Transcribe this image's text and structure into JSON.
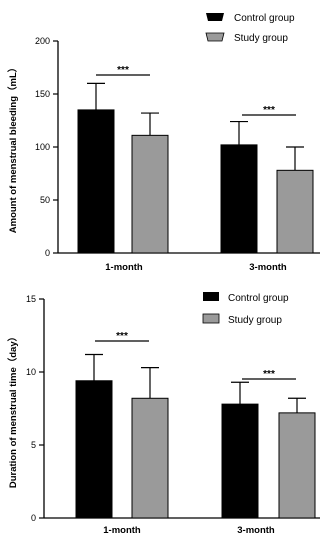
{
  "chart_data": [
    {
      "type": "bar",
      "categories": [
        "1-month",
        "3-month"
      ],
      "ylabel": "Amount of menstrual bleeding（mL）",
      "ylim": [
        0,
        200
      ],
      "yticks": [
        "0",
        "50",
        "100",
        "150",
        "200"
      ],
      "legend_position": "top-right",
      "series": [
        {
          "name": "Control group",
          "color": "#000000",
          "values": [
            135,
            102
          ],
          "errors": [
            25,
            22
          ]
        },
        {
          "name": "Study group",
          "color": "#9a9a9a",
          "values": [
            111,
            78
          ],
          "errors": [
            21,
            22
          ]
        }
      ],
      "annotations": [
        "***",
        "***"
      ]
    },
    {
      "type": "bar",
      "categories": [
        "1-month",
        "3-month"
      ],
      "ylabel": "Duration of menstrual time（day）",
      "ylim": [
        0,
        15
      ],
      "yticks": [
        "0",
        "5",
        "10",
        "15"
      ],
      "legend_position": "top-right",
      "series": [
        {
          "name": "Control group",
          "color": "#000000",
          "values": [
            9.4,
            7.8
          ],
          "errors": [
            1.8,
            1.5
          ]
        },
        {
          "name": "Study group",
          "color": "#9a9a9a",
          "values": [
            8.2,
            7.2
          ],
          "errors": [
            2.1,
            1.0
          ]
        }
      ],
      "annotations": [
        "***",
        "***"
      ]
    }
  ]
}
